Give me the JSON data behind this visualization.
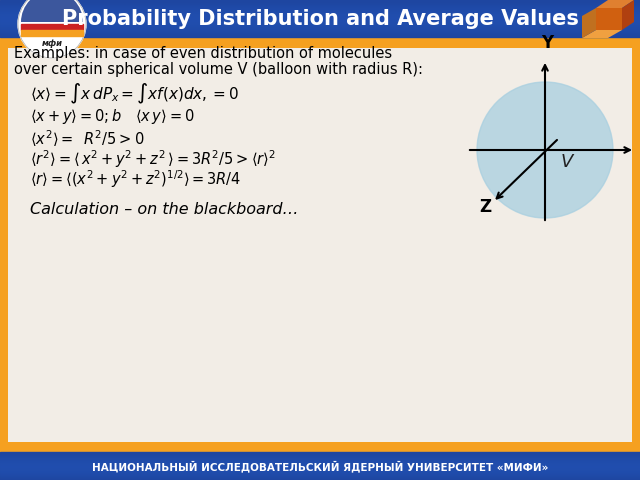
{
  "title": "Probability Distribution and Average Values",
  "footer": "НАЦИОНАЛЬНЫЙ ИССЛЕДОВАТЕЛЬСКИЙ ЯДЕРНЫЙ УНИВЕРСИТЕТ «МИФИ»",
  "bg_orange": "#f5a020",
  "header_dark_blue": "#1a3a8c",
  "header_mid_blue": "#2255bb",
  "footer_dark_blue": "#1a3a8c",
  "title_color": "#ffffff",
  "body_bg": "#f2ede6",
  "text_color": "#000000",
  "sphere_color": "#a8cfe0",
  "sphere_alpha": 0.75,
  "example_line1": "Examples: in case of even distribution of molecules",
  "example_line2": "over certain spherical volume V (balloon with radius R):",
  "calc_text": "Calculation – on the blackboard…"
}
